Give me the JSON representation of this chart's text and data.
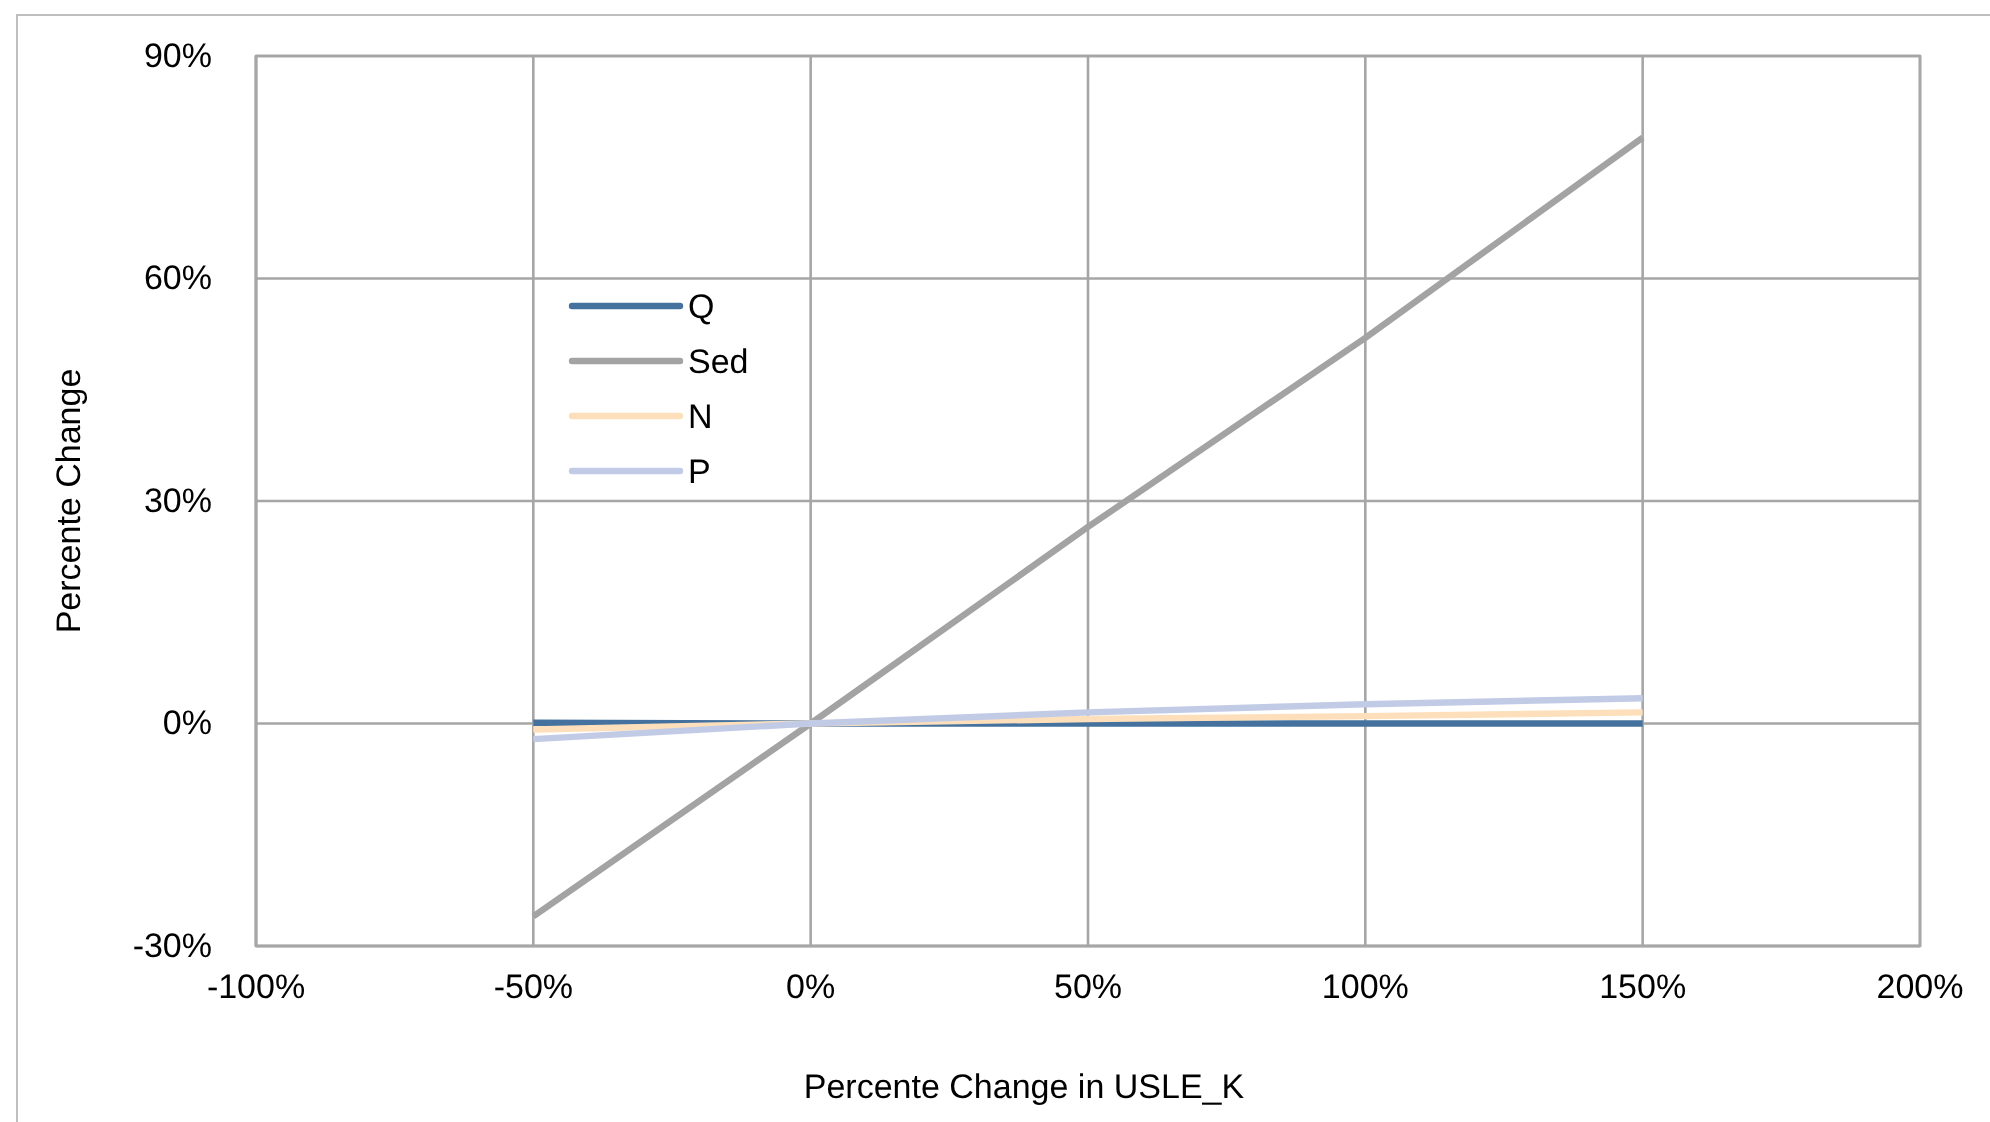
{
  "chart_data": {
    "type": "line",
    "xlabel": "Percente Change in USLE_K",
    "ylabel": "Percente Change",
    "x": [
      -50,
      0,
      50,
      100,
      150
    ],
    "series": [
      {
        "name": "Q",
        "color": "#44719d",
        "values": [
          0.1,
          0,
          0,
          0,
          0
        ]
      },
      {
        "name": "Sed",
        "color": "#a3a3a3",
        "values": [
          -26,
          0,
          26.5,
          52,
          79
        ]
      },
      {
        "name": "N",
        "color": "#fde0bb",
        "values": [
          -0.8,
          0,
          0.6,
          1,
          1.5
        ]
      },
      {
        "name": "P",
        "color": "#c2cbe6",
        "values": [
          -2.1,
          0,
          1.5,
          2.6,
          3.4
        ]
      }
    ],
    "xlim": [
      -100,
      200
    ],
    "xticks": [
      {
        "value": -100,
        "label": "-100%"
      },
      {
        "value": -50,
        "label": "-50%"
      },
      {
        "value": 0,
        "label": "0%"
      },
      {
        "value": 50,
        "label": "50%"
      },
      {
        "value": 100,
        "label": "100%"
      },
      {
        "value": 150,
        "label": "150%"
      },
      {
        "value": 200,
        "label": "200%"
      }
    ],
    "ylim": [
      -30,
      90
    ],
    "yticks": [
      {
        "value": -30,
        "label": "-30%"
      },
      {
        "value": 0,
        "label": "0%"
      },
      {
        "value": 30,
        "label": "30%"
      },
      {
        "value": 60,
        "label": "60%"
      },
      {
        "value": 90,
        "label": "90%"
      }
    ],
    "grid": true,
    "legend": "top left",
    "marker": "none",
    "line_style": "solid"
  }
}
